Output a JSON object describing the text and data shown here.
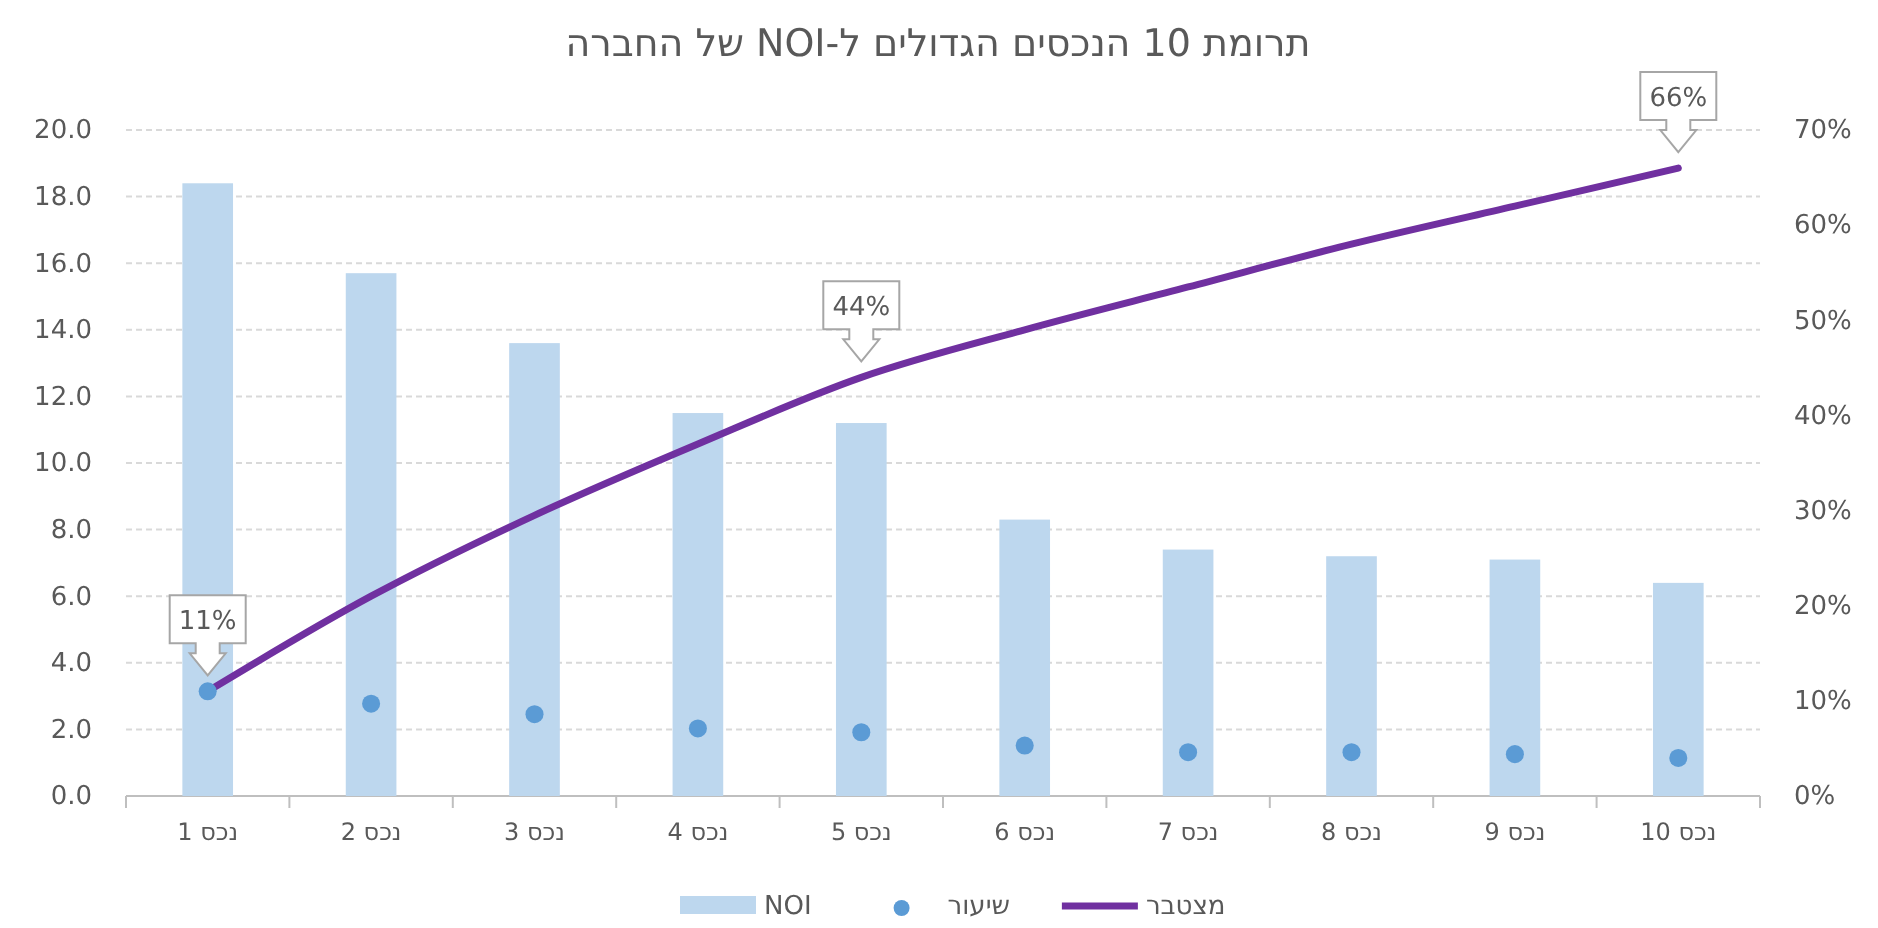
{
  "chart_data": {
    "type": "bar",
    "title": "תרומת 10  הנכסים הגדולים ל-NOI של החברה",
    "categories": [
      "נכס 1",
      "נכס 2",
      "נכס 3",
      "נכס 4",
      "נכס 5",
      "נכס 6",
      "נכס 7",
      "נכס 8",
      "נכס 9",
      "נכס 10"
    ],
    "series": [
      {
        "name": "NOI",
        "color": "#bdd7ee",
        "values": [
          18.4,
          15.7,
          13.6,
          11.5,
          11.2,
          8.3,
          7.4,
          7.2,
          7.1,
          6.4
        ]
      },
      {
        "name": "שיעור",
        "type": "scatter",
        "axis": "y2",
        "color": "#5b9bd5",
        "marker": "circle",
        "values": [
          11,
          9.7,
          8.6,
          7.1,
          6.7,
          5.3,
          4.6,
          4.6,
          4.4,
          4.0
        ]
      },
      {
        "name": "מצטבר",
        "type": "line",
        "axis": "y2",
        "color": "#7030a0",
        "line_style": "solid",
        "values": [
          11,
          21,
          29.5,
          37,
          44,
          49,
          53.5,
          58,
          62,
          66
        ],
        "value_labels": [
          "11%",
          null,
          null,
          null,
          "44%",
          null,
          null,
          null,
          null,
          "66%"
        ]
      }
    ],
    "ylim": [
      0,
      20
    ],
    "yticks": [
      {
        "value": 0,
        "label": "0.0"
      },
      {
        "value": 2,
        "label": "2.0"
      },
      {
        "value": 4,
        "label": "4.0"
      },
      {
        "value": 6,
        "label": "6.0"
      },
      {
        "value": 8,
        "label": "8.0"
      },
      {
        "value": 10,
        "label": "10.0"
      },
      {
        "value": 12,
        "label": "12.0"
      },
      {
        "value": 14,
        "label": "14.0"
      },
      {
        "value": 16,
        "label": "16.0"
      },
      {
        "value": 18,
        "label": "18.0"
      },
      {
        "value": 20,
        "label": "20.0"
      }
    ],
    "y2lim": [
      0,
      70
    ],
    "y2ticks": [
      {
        "value": 0,
        "label": "0%"
      },
      {
        "value": 10,
        "label": "10%"
      },
      {
        "value": 20,
        "label": "20%"
      },
      {
        "value": 30,
        "label": "30%"
      },
      {
        "value": 40,
        "label": "40%"
      },
      {
        "value": 50,
        "label": "50%"
      },
      {
        "value": 60,
        "label": "60%"
      },
      {
        "value": 70,
        "label": "70%"
      }
    ],
    "grid": "y",
    "legend": "bottom"
  }
}
